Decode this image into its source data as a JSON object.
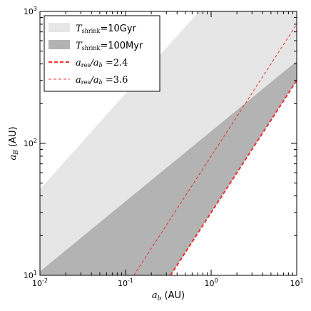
{
  "chart_data": {
    "type": "area",
    "xscale": "log",
    "yscale": "log",
    "xlim": [
      0.01,
      10
    ],
    "ylim": [
      10,
      1000
    ],
    "x_ticks": [
      {
        "value": 0.01,
        "mant": "10",
        "exp": "-2"
      },
      {
        "value": 0.1,
        "mant": "10",
        "exp": "-1"
      },
      {
        "value": 1,
        "mant": "10",
        "exp": "0"
      },
      {
        "value": 10,
        "mant": "10",
        "exp": "1"
      }
    ],
    "y_ticks": [
      {
        "value": 10,
        "mant": "10",
        "exp": "1"
      },
      {
        "value": 100,
        "mant": "10",
        "exp": "2"
      },
      {
        "value": 1000,
        "mant": "10",
        "exp": "3"
      }
    ],
    "xlabel": {
      "symbol": "a",
      "sub": "b",
      "unit": " (AU)"
    },
    "ylabel": {
      "symbol": "a",
      "sub": "B",
      "unit": " (AU)"
    },
    "legend_position": "upper-left",
    "series": [
      {
        "kind": "band",
        "color": "#e6e6e6",
        "legend": {
          "sym": "T",
          "sub": "shrink",
          "rest": "=10Gyr"
        },
        "lower": [
          [
            0.01,
            10
          ],
          [
            10,
            300
          ]
        ],
        "upper": [
          [
            0.01,
            45
          ],
          [
            0.72,
            1000
          ],
          [
            10,
            1000
          ]
        ]
      },
      {
        "kind": "band",
        "color": "#b3b3b3",
        "legend": {
          "sym": "T",
          "sub": "shrink",
          "rest": "=100Myr"
        },
        "lower": [
          [
            0.335,
            10
          ],
          [
            10,
            300
          ]
        ],
        "upper": [
          [
            0.01,
            10.7
          ],
          [
            10,
            420
          ]
        ]
      },
      {
        "kind": "line",
        "color": "#e8302c",
        "style": "bold-dashed",
        "legend": {
          "sym": "a",
          "sub": "res",
          "rest": "/a",
          "sub2": "b",
          "rest2": " =2.4"
        },
        "points": [
          [
            0.335,
            10
          ],
          [
            10,
            300
          ]
        ]
      },
      {
        "kind": "line",
        "color": "#e8302c",
        "style": "thin-dashed",
        "legend": {
          "sym": "a",
          "sub": "res",
          "rest": "/a",
          "sub2": "b",
          "rest2": " =3.6"
        },
        "points": [
          [
            0.125,
            10
          ],
          [
            10,
            800
          ]
        ]
      }
    ]
  }
}
